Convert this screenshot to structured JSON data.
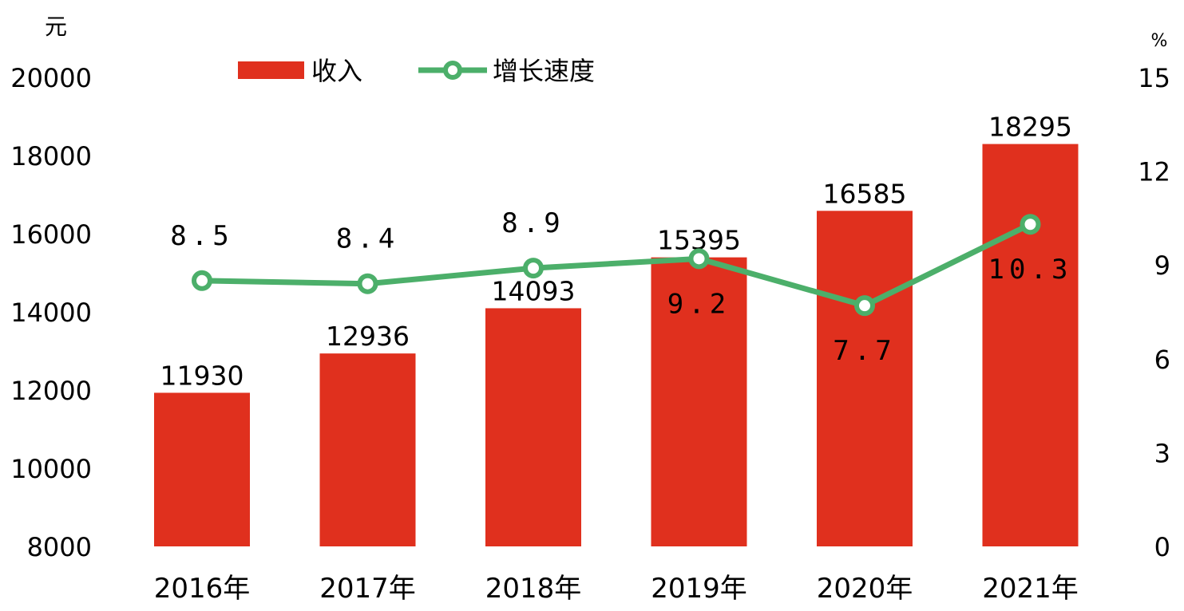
{
  "chart_data": {
    "type": "bar",
    "categories": [
      "2016年",
      "2017年",
      "2018年",
      "2019年",
      "2020年",
      "2021年"
    ],
    "series": [
      {
        "name": "收入",
        "kind": "bar",
        "axis": "left",
        "color": "#e0301e",
        "values": [
          11930,
          12936,
          14093,
          15395,
          16585,
          18295
        ],
        "labels": [
          "11930",
          "12936",
          "14093",
          "15395",
          "16585",
          "18295"
        ]
      },
      {
        "name": "增长速度",
        "kind": "line",
        "axis": "right",
        "color": "#4caf6a",
        "values": [
          8.5,
          8.4,
          8.9,
          9.2,
          7.7,
          10.3
        ],
        "labels": [
          "8.5",
          "8.4",
          "8.9",
          "9.2",
          "7.7",
          "10.3"
        ]
      }
    ],
    "y_left": {
      "unit": "元",
      "ylim": [
        8000,
        20000
      ],
      "ticks": [
        "8000",
        "10000",
        "12000",
        "14000",
        "16000",
        "18000",
        "20000"
      ]
    },
    "y_right": {
      "unit": "%",
      "ylim": [
        0,
        15
      ],
      "ticks": [
        "0",
        "3",
        "6",
        "9",
        "12",
        "15"
      ]
    },
    "legend": {
      "placement": "top-left",
      "items": [
        "收入",
        "增长速度"
      ]
    },
    "grid": false
  }
}
